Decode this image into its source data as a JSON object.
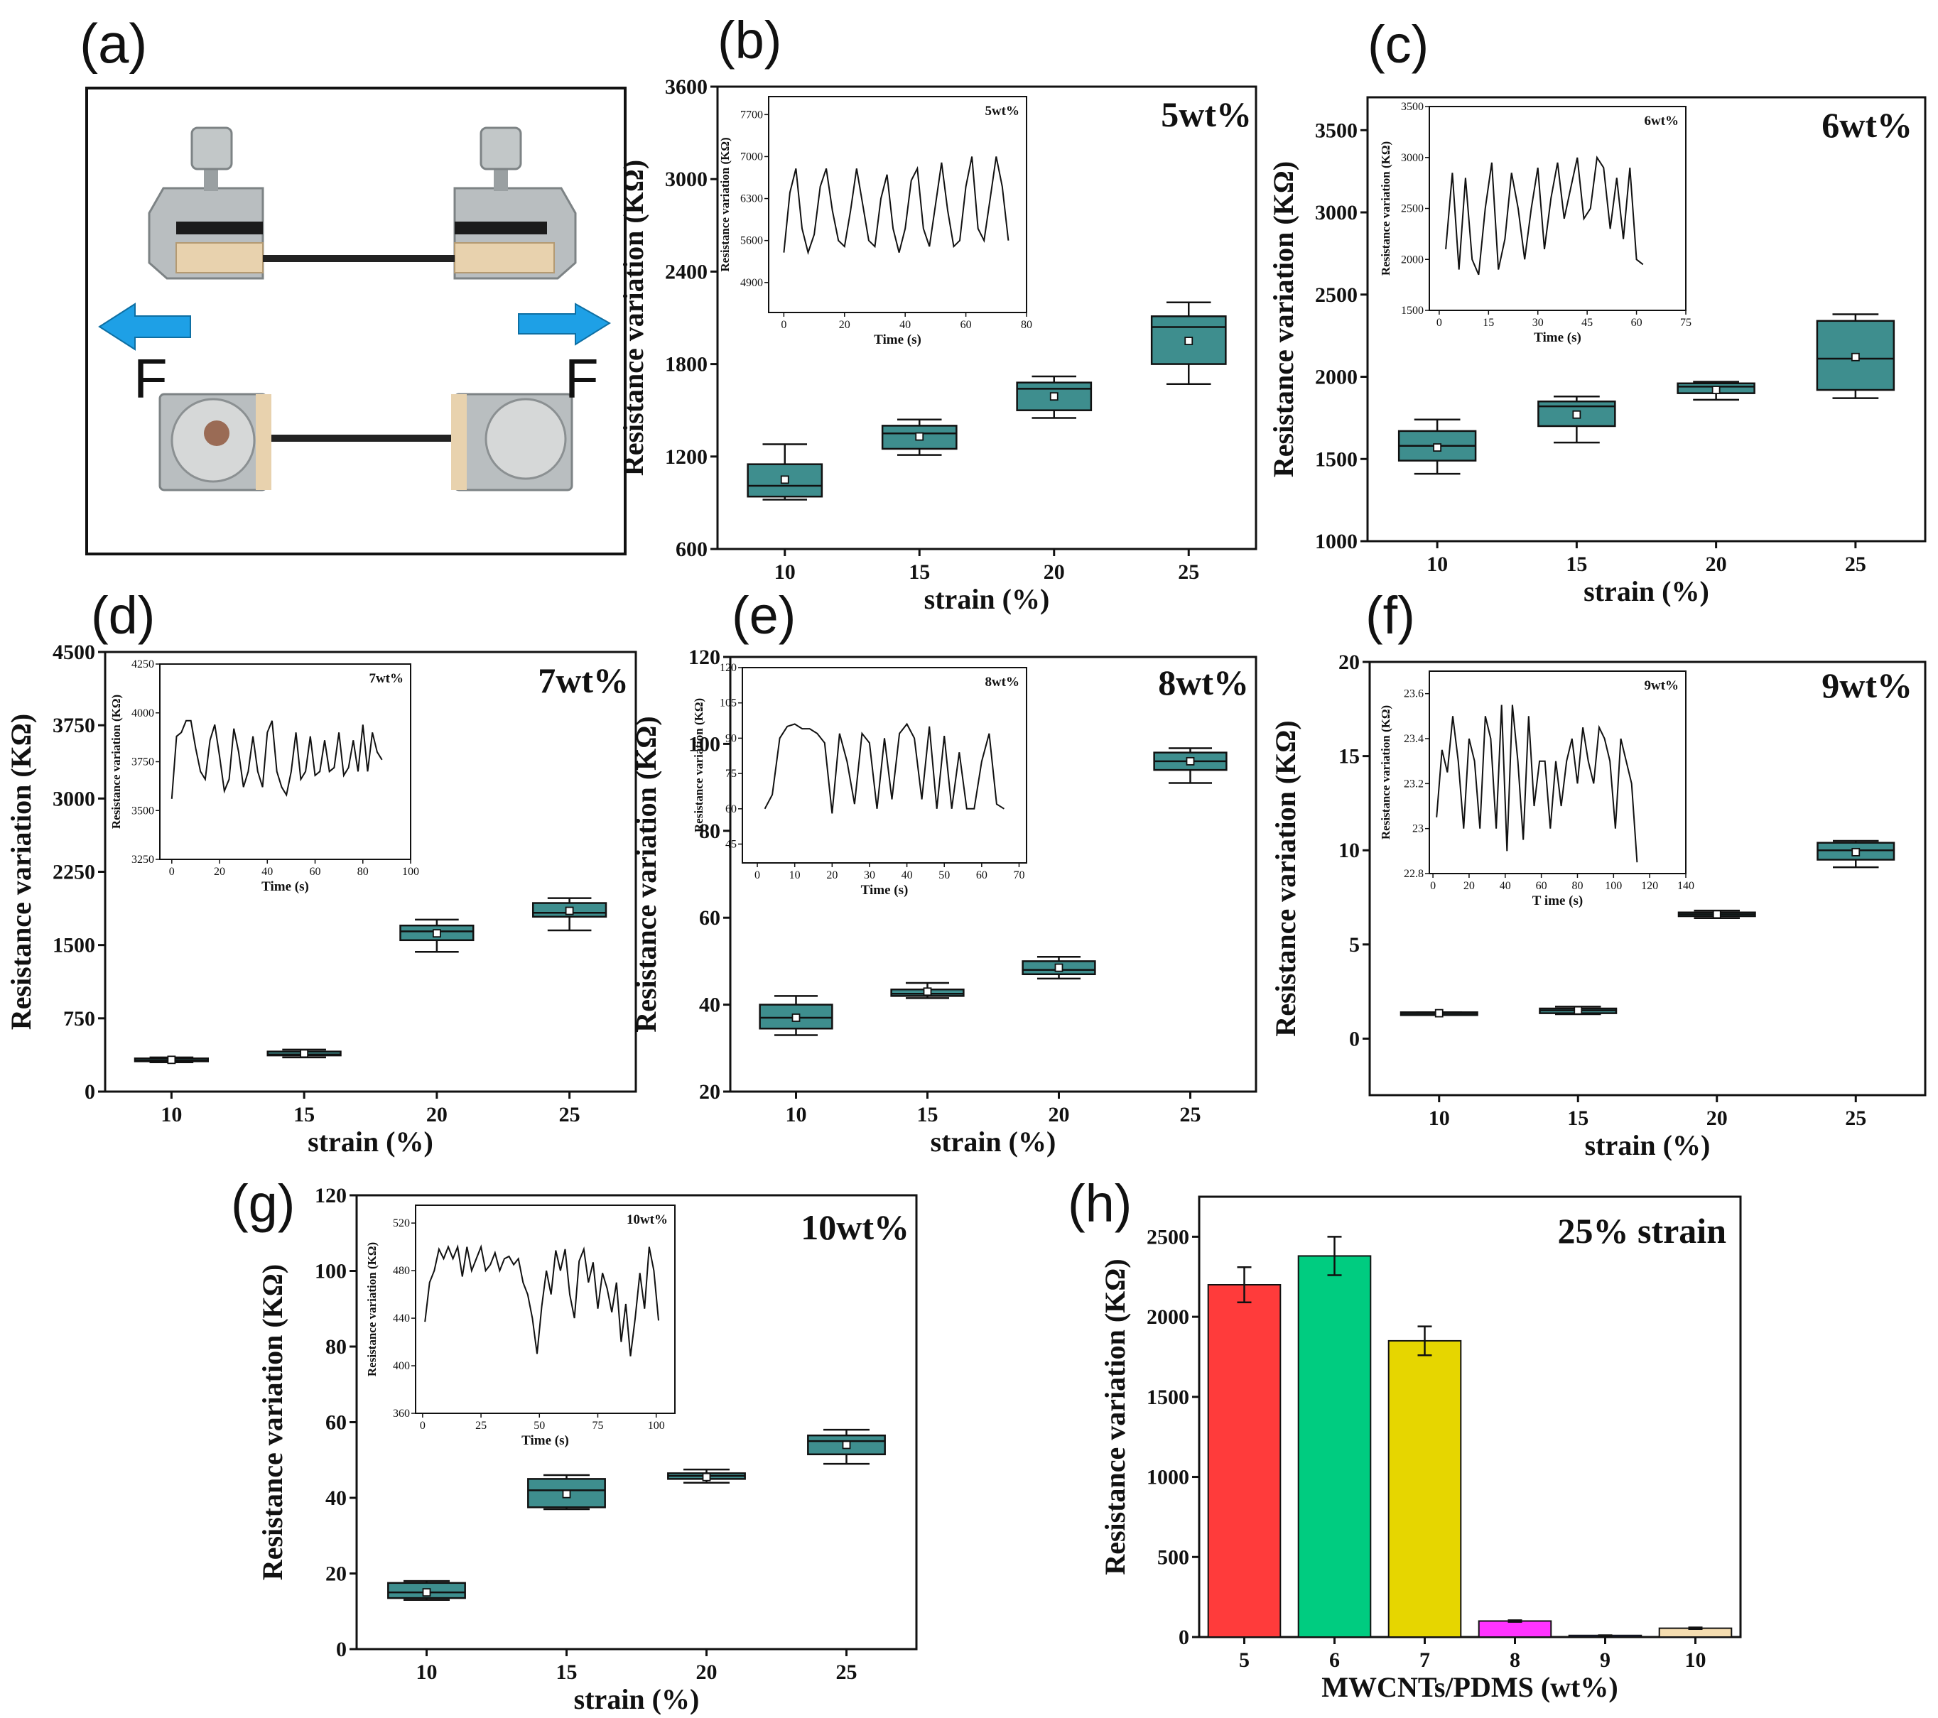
{
  "panel_a": {
    "label": "(a)",
    "force_left": "F",
    "force_right": "F",
    "arrow_color": "#1EA0E6"
  },
  "colors": {
    "box": "#3E8E8E",
    "bar_5": "#FF3B3B",
    "bar_6": "#00CC80",
    "bar_7": "#E6D600",
    "bar_8": "#FF33FF",
    "bar_9": "#2B3FE0",
    "bar_10": "#F5DDB0"
  },
  "chart_data": [
    {
      "id": "b",
      "label": "(b)",
      "type": "box",
      "title": "5wt%",
      "xlabel": "strain (%)",
      "ylabel": "Resistance variation (KΩ)",
      "categories": [
        "10",
        "15",
        "20",
        "25"
      ],
      "ylim": [
        600,
        3600
      ],
      "yticks": [
        600,
        1200,
        1800,
        2400,
        3000,
        3600
      ],
      "boxes": [
        {
          "min": 920,
          "q1": 940,
          "median": 1010,
          "q3": 1150,
          "max": 1280,
          "mean": 1050
        },
        {
          "min": 1210,
          "q1": 1250,
          "median": 1350,
          "q3": 1400,
          "max": 1440,
          "mean": 1330
        },
        {
          "min": 1450,
          "q1": 1500,
          "median": 1640,
          "q3": 1680,
          "max": 1720,
          "mean": 1590
        },
        {
          "min": 1670,
          "q1": 1800,
          "median": 2040,
          "q3": 2110,
          "max": 2200,
          "mean": 1950
        }
      ],
      "inset": {
        "label": "5wt%",
        "xlabel": "Time (s)",
        "ylabel": "Resistance variation (KΩ)",
        "xlim": [
          -5,
          80
        ],
        "ylim": [
          4400,
          8000
        ],
        "xticks": [
          0,
          20,
          40,
          60,
          80
        ],
        "yticks": [
          4900,
          5600,
          6300,
          7000,
          7700
        ],
        "x": [
          0,
          2,
          4,
          6,
          8,
          10,
          12,
          14,
          16,
          18,
          20,
          22,
          24,
          26,
          28,
          30,
          32,
          34,
          36,
          38,
          40,
          42,
          44,
          46,
          48,
          50,
          52,
          54,
          56,
          58,
          60,
          62,
          64,
          66,
          68,
          70,
          72,
          74
        ],
        "y": [
          5400,
          6400,
          6800,
          5800,
          5400,
          5700,
          6500,
          6800,
          6100,
          5600,
          5500,
          6100,
          6800,
          6200,
          5600,
          5500,
          6300,
          6700,
          5800,
          5400,
          5800,
          6600,
          6800,
          5800,
          5500,
          6200,
          6900,
          6100,
          5500,
          5600,
          6500,
          7000,
          5800,
          5600,
          6300,
          7000,
          6500,
          5600
        ]
      }
    },
    {
      "id": "c",
      "label": "(c)",
      "type": "box",
      "title": "6wt%",
      "xlabel": "strain (%)",
      "ylabel": "Resistance variation (KΩ)",
      "categories": [
        "10",
        "15",
        "20",
        "25"
      ],
      "ylim": [
        1000,
        3700
      ],
      "yticks": [
        1000,
        1500,
        2000,
        2500,
        3000,
        3500
      ],
      "boxes": [
        {
          "min": 1410,
          "q1": 1490,
          "median": 1580,
          "q3": 1670,
          "max": 1740,
          "mean": 1570
        },
        {
          "min": 1600,
          "q1": 1700,
          "median": 1820,
          "q3": 1850,
          "max": 1880,
          "mean": 1770
        },
        {
          "min": 1860,
          "q1": 1900,
          "median": 1940,
          "q3": 1960,
          "max": 1970,
          "mean": 1920
        },
        {
          "min": 1870,
          "q1": 1920,
          "median": 2110,
          "q3": 2340,
          "max": 2380,
          "mean": 2120
        }
      ],
      "inset": {
        "label": "6wt%",
        "xlabel": "Time (s)",
        "ylabel": "Resistance variation (KΩ)",
        "xlim": [
          -3,
          75
        ],
        "ylim": [
          1500,
          3500
        ],
        "xticks": [
          0,
          15,
          30,
          45,
          60,
          75
        ],
        "yticks": [
          1500,
          2000,
          2500,
          3000,
          3500
        ],
        "x": [
          2,
          4,
          6,
          8,
          10,
          12,
          14,
          16,
          18,
          20,
          22,
          24,
          26,
          28,
          30,
          32,
          34,
          36,
          38,
          40,
          42,
          44,
          46,
          48,
          50,
          52,
          54,
          56,
          58,
          60,
          62
        ],
        "y": [
          2100,
          2850,
          1900,
          2800,
          2000,
          1850,
          2500,
          2950,
          1900,
          2200,
          2850,
          2500,
          2000,
          2500,
          2900,
          2100,
          2600,
          2950,
          2400,
          2700,
          3000,
          2400,
          2500,
          3000,
          2900,
          2300,
          2800,
          2200,
          2900,
          2000,
          1950
        ]
      }
    },
    {
      "id": "d",
      "label": "(d)",
      "type": "box",
      "title": "7wt%",
      "xlabel": "strain (%)",
      "ylabel": "Resistance variation (KΩ)",
      "categories": [
        "10",
        "15",
        "20",
        "25"
      ],
      "ylim": [
        0,
        4500
      ],
      "yticks": [
        0,
        750,
        1500,
        2250,
        3000,
        3750,
        4500
      ],
      "boxes": [
        {
          "min": 300,
          "q1": 310,
          "median": 320,
          "q3": 340,
          "max": 350,
          "mean": 325
        },
        {
          "min": 350,
          "q1": 370,
          "median": 380,
          "q3": 410,
          "max": 430,
          "mean": 390
        },
        {
          "min": 1430,
          "q1": 1550,
          "median": 1640,
          "q3": 1700,
          "max": 1760,
          "mean": 1620
        },
        {
          "min": 1650,
          "q1": 1790,
          "median": 1830,
          "q3": 1930,
          "max": 1980,
          "mean": 1850
        }
      ],
      "inset": {
        "label": "7wt%",
        "xlabel": "Time (s)",
        "ylabel": "Resistance variation (KΩ)",
        "xlim": [
          -5,
          100
        ],
        "ylim": [
          3250,
          4250
        ],
        "xticks": [
          0,
          20,
          40,
          60,
          80,
          100
        ],
        "yticks": [
          3250,
          3500,
          3750,
          4000,
          4250
        ],
        "x": [
          0,
          2,
          4,
          6,
          8,
          10,
          12,
          14,
          16,
          18,
          20,
          22,
          24,
          26,
          28,
          30,
          32,
          34,
          36,
          38,
          40,
          42,
          44,
          46,
          48,
          50,
          52,
          54,
          56,
          58,
          60,
          62,
          64,
          66,
          68,
          70,
          72,
          74,
          76,
          78,
          80,
          82,
          84,
          86,
          88
        ],
        "y": [
          3560,
          3880,
          3900,
          3960,
          3960,
          3820,
          3700,
          3660,
          3860,
          3940,
          3780,
          3600,
          3660,
          3920,
          3800,
          3620,
          3700,
          3880,
          3700,
          3620,
          3900,
          3960,
          3700,
          3620,
          3580,
          3700,
          3900,
          3660,
          3700,
          3880,
          3680,
          3700,
          3860,
          3700,
          3720,
          3900,
          3680,
          3720,
          3860,
          3700,
          3940,
          3700,
          3900,
          3800,
          3760
        ]
      }
    },
    {
      "id": "e",
      "label": "(e)",
      "type": "box",
      "title": "8wt%",
      "xlabel": "strain (%)",
      "ylabel": "Resistance variation (KΩ)",
      "categories": [
        "10",
        "15",
        "20",
        "25"
      ],
      "ylim": [
        20,
        120
      ],
      "yticks": [
        20,
        40,
        60,
        80,
        100,
        120
      ],
      "boxes": [
        {
          "min": 33,
          "q1": 34.5,
          "median": 37,
          "q3": 40,
          "max": 42,
          "mean": 37
        },
        {
          "min": 41.5,
          "q1": 42,
          "median": 42.5,
          "q3": 43.5,
          "max": 45,
          "mean": 43
        },
        {
          "min": 46,
          "q1": 47,
          "median": 48,
          "q3": 50,
          "max": 51,
          "mean": 48.5
        },
        {
          "min": 91,
          "q1": 94,
          "median": 96,
          "q3": 98,
          "max": 99,
          "mean": 96
        }
      ],
      "inset": {
        "label": "8wt%",
        "xlabel": "Time (s)",
        "ylabel": "Resistance variation (KΩ)",
        "xlim": [
          -4,
          72
        ],
        "ylim": [
          37,
          120
        ],
        "xticks": [
          0,
          10,
          20,
          30,
          40,
          50,
          60,
          70
        ],
        "yticks": [
          45,
          60,
          75,
          90,
          105,
          120
        ],
        "x": [
          2,
          4,
          6,
          8,
          10,
          12,
          14,
          16,
          18,
          20,
          22,
          24,
          26,
          28,
          30,
          32,
          34,
          36,
          38,
          40,
          42,
          44,
          46,
          48,
          50,
          52,
          54,
          56,
          58,
          60,
          62,
          64,
          66
        ],
        "y": [
          60,
          66,
          90,
          95,
          96,
          94,
          94,
          92,
          88,
          58,
          92,
          80,
          62,
          92,
          88,
          60,
          90,
          64,
          92,
          96,
          90,
          64,
          95,
          60,
          91,
          60,
          84,
          60,
          60,
          80,
          92,
          62,
          60
        ]
      }
    },
    {
      "id": "f",
      "label": "(f)",
      "type": "box",
      "title": "9wt%",
      "xlabel": "strain (%)",
      "ylabel": "Resistance variation (KΩ)",
      "categories": [
        "10",
        "15",
        "20",
        "25"
      ],
      "ylim": [
        -3,
        20
      ],
      "yticks": [
        0,
        5,
        10,
        15,
        20
      ],
      "boxes": [
        {
          "min": 1.3,
          "q1": 1.3,
          "median": 1.35,
          "q3": 1.4,
          "max": 1.4,
          "mean": 1.35
        },
        {
          "min": 1.3,
          "q1": 1.35,
          "median": 1.5,
          "q3": 1.6,
          "max": 1.7,
          "mean": 1.5
        },
        {
          "min": 6.4,
          "q1": 6.5,
          "median": 6.6,
          "q3": 6.7,
          "max": 6.8,
          "mean": 6.6
        },
        {
          "min": 9.1,
          "q1": 9.5,
          "median": 10,
          "q3": 10.4,
          "max": 10.5,
          "mean": 9.9
        }
      ],
      "inset": {
        "label": "9wt%",
        "xlabel": "T ime (s)",
        "ylabel": "Resistance variation (KΩ)",
        "xlim": [
          -2,
          140
        ],
        "ylim": [
          22.8,
          23.7
        ],
        "xticks": [
          0,
          20,
          40,
          60,
          80,
          100,
          120,
          140
        ],
        "yticks": [
          22.8,
          23.0,
          23.2,
          23.4,
          23.6
        ],
        "x": [
          2,
          5,
          8,
          11,
          14,
          17,
          20,
          23,
          26,
          29,
          32,
          35,
          38,
          41,
          44,
          47,
          50,
          53,
          56,
          59,
          62,
          65,
          68,
          71,
          74,
          77,
          80,
          83,
          86,
          89,
          92,
          95,
          98,
          101,
          104,
          107,
          110,
          113
        ],
        "y": [
          23.05,
          23.35,
          23.25,
          23.5,
          23.3,
          23.0,
          23.4,
          23.3,
          23.0,
          23.5,
          23.4,
          23.0,
          23.55,
          22.9,
          23.55,
          23.3,
          22.95,
          23.5,
          23.1,
          23.3,
          23.3,
          23.0,
          23.3,
          23.1,
          23.3,
          23.4,
          23.2,
          23.45,
          23.3,
          23.2,
          23.45,
          23.4,
          23.3,
          23.0,
          23.4,
          23.3,
          23.2,
          22.85
        ]
      }
    },
    {
      "id": "g",
      "label": "(g)",
      "type": "box",
      "title": "10wt%",
      "xlabel": "strain (%)",
      "ylabel": "Resistance variation (KΩ)",
      "categories": [
        "10",
        "15",
        "20",
        "25"
      ],
      "ylim": [
        0,
        120
      ],
      "yticks": [
        0,
        20,
        40,
        60,
        80,
        100,
        120
      ],
      "boxes": [
        {
          "min": 13,
          "q1": 13.5,
          "median": 15,
          "q3": 17.5,
          "max": 18,
          "mean": 15
        },
        {
          "min": 37,
          "q1": 37.5,
          "median": 42,
          "q3": 45,
          "max": 46,
          "mean": 41
        },
        {
          "min": 44,
          "q1": 45,
          "median": 45.8,
          "q3": 46.5,
          "max": 47.5,
          "mean": 45.5
        },
        {
          "min": 49,
          "q1": 51.5,
          "median": 55,
          "q3": 56.5,
          "max": 58,
          "mean": 54
        }
      ],
      "inset": {
        "label": "10wt%",
        "xlabel": "Time (s)",
        "ylabel": "Resistance variation (KΩ)",
        "xlim": [
          -3,
          108
        ],
        "ylim": [
          360,
          535
        ],
        "xticks": [
          0,
          25,
          50,
          75,
          100
        ],
        "yticks": [
          360,
          400,
          440,
          480,
          520
        ],
        "x": [
          1,
          3,
          5,
          7,
          9,
          11,
          13,
          15,
          17,
          19,
          21,
          23,
          25,
          27,
          29,
          31,
          33,
          35,
          37,
          39,
          41,
          43,
          45,
          47,
          49,
          51,
          53,
          55,
          57,
          59,
          61,
          63,
          65,
          67,
          69,
          71,
          73,
          75,
          77,
          79,
          81,
          83,
          85,
          87,
          89,
          91,
          93,
          95,
          97,
          99,
          101
        ],
        "y": [
          437,
          470,
          480,
          498,
          490,
          500,
          490,
          500,
          475,
          500,
          480,
          490,
          500,
          480,
          485,
          495,
          480,
          490,
          492,
          485,
          490,
          470,
          460,
          440,
          410,
          450,
          480,
          460,
          497,
          480,
          498,
          460,
          440,
          488,
          498,
          470,
          487,
          448,
          478,
          465,
          445,
          470,
          420,
          452,
          408,
          440,
          478,
          448,
          500,
          480,
          438
        ]
      }
    },
    {
      "id": "h",
      "label": "(h)",
      "type": "bar",
      "title": "25% strain",
      "xlabel": "MWCNTs/PDMS (wt%)",
      "ylabel": "Resistance variation (KΩ)",
      "categories": [
        "5",
        "6",
        "7",
        "8",
        "9",
        "10"
      ],
      "values": [
        2200,
        2380,
        1850,
        100,
        10,
        55
      ],
      "errors": [
        110,
        120,
        90,
        5,
        1,
        5
      ],
      "ylim": [
        0,
        2750
      ],
      "yticks": [
        0,
        500,
        1000,
        1500,
        2000,
        2500
      ]
    }
  ]
}
